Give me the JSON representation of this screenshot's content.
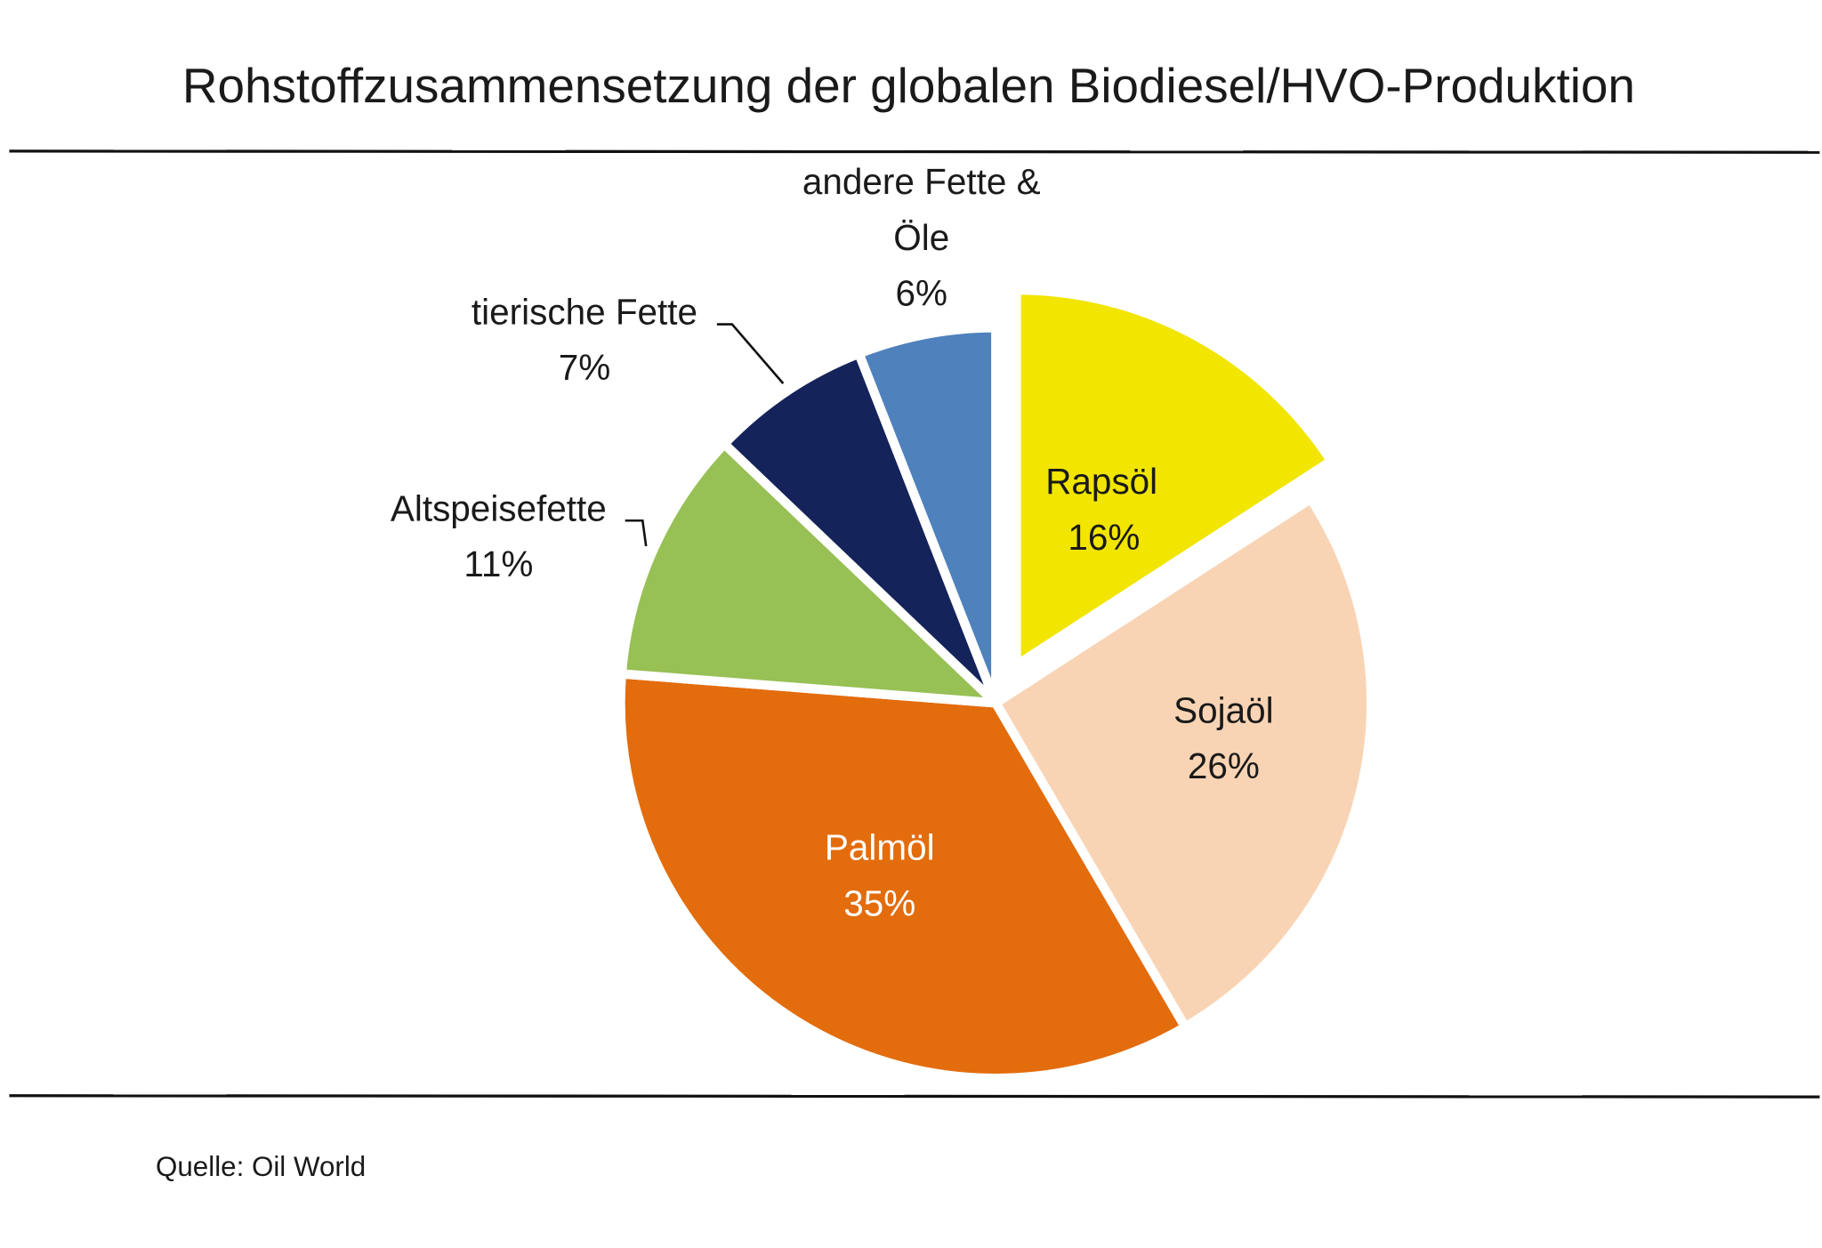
{
  "chart_data": {
    "type": "pie",
    "title": "Rohstoffzusammensetzung  der globalen Biodiesel/HVO-Produktion",
    "source": "Quelle: Oil World",
    "slices": [
      {
        "name": "Rapsöl",
        "value": 16,
        "label": "16%",
        "color": "#f2e500",
        "text_color": "#1a1a1a",
        "exploded": true
      },
      {
        "name": "Sojaöl",
        "value": 26,
        "label": "26%",
        "color": "#f9d4b4",
        "text_color": "#1a1a1a",
        "exploded": false
      },
      {
        "name": "Palmöl",
        "value": 35,
        "label": "35%",
        "color": "#e36c0d",
        "text_color": "#ffffff",
        "exploded": false
      },
      {
        "name": "Altspeisefette",
        "value": 11,
        "label": "11%",
        "color": "#97c055",
        "text_color": "#1a1a1a",
        "exploded": false
      },
      {
        "name": "tierische Fette",
        "value": 7,
        "label": "7%",
        "color": "#14235a",
        "text_color": "#1a1a1a",
        "exploded": false
      },
      {
        "name": "andere Fette & Öle",
        "name_lines": [
          "andere Fette &",
          "Öle"
        ],
        "value": 6,
        "label": "6%",
        "color": "#4f81bd",
        "text_color": "#1a1a1a",
        "exploded": false
      }
    ]
  }
}
